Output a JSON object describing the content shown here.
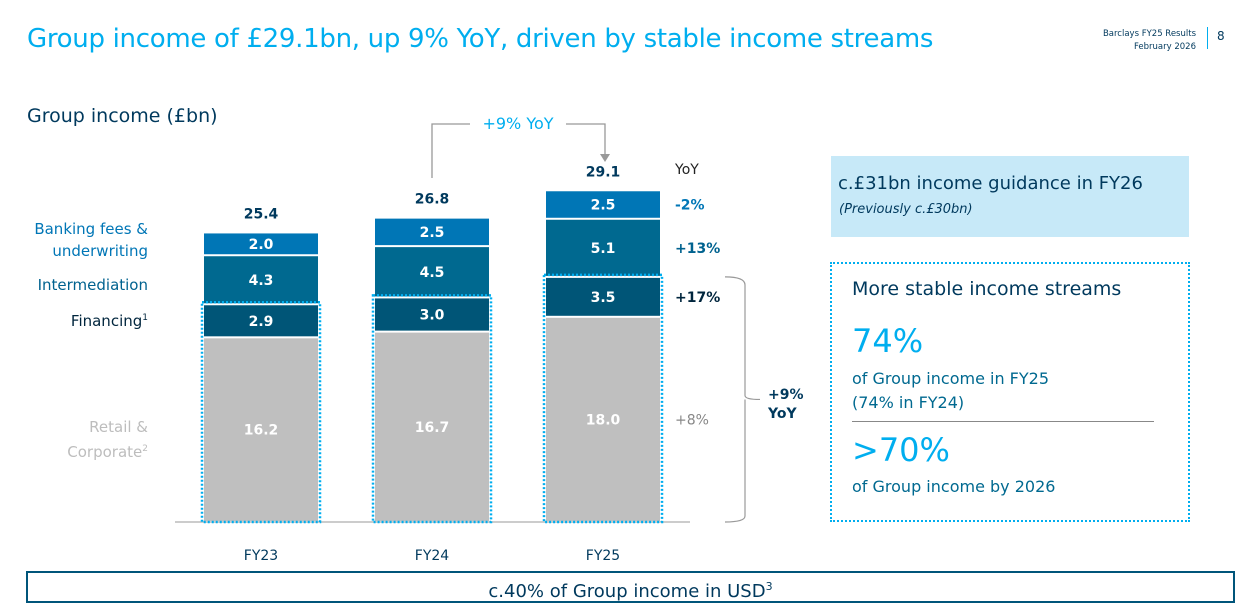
{
  "header": {
    "title": "Group income of £29.1bn, up 9% YoY, driven by stable income streams",
    "doc": "Barclays FY25 Results",
    "date": "February 2026",
    "page": "8"
  },
  "chart_data": {
    "type": "bar",
    "stacked": true,
    "title": "Group income (£bn)",
    "categories": [
      "FY23",
      "FY24",
      "FY25"
    ],
    "series": [
      {
        "name": "Retail & Corporate",
        "sup": "2",
        "values": [
          16.2,
          16.7,
          18.0
        ],
        "yoy": "+8%",
        "color": "#bfbfbf",
        "label_color": "#bdbdbd"
      },
      {
        "name": "Financing",
        "sup": "1",
        "values": [
          2.9,
          3.0,
          3.5
        ],
        "yoy": "+17%",
        "color": "#005577",
        "label_color": "#00253d"
      },
      {
        "name": "Intermediation",
        "values": [
          4.3,
          4.5,
          5.1
        ],
        "yoy": "+13%",
        "color": "#006990",
        "label_color": "#00628f"
      },
      {
        "name": "Banking fees & underwriting",
        "values": [
          2.0,
          2.5,
          2.5
        ],
        "yoy": "-2%",
        "color": "#0076b6",
        "label_color": "#0076b6"
      }
    ],
    "totals": [
      25.4,
      26.8,
      29.1
    ],
    "yoy_header": "YoY",
    "growth_arrow": "+9% YoY",
    "bracket_label": [
      "+9%",
      "YoY"
    ]
  },
  "guidance": {
    "title": "c.£31bn income guidance in FY26",
    "sub": "(Previously c.£30bn)"
  },
  "stable": {
    "heading": "More stable income streams",
    "v1": "74%",
    "d1a": "of Group income in FY25",
    "d1b": "(74% in FY24)",
    "v2": ">70%",
    "d2": "of Group income by 2026"
  },
  "footer": {
    "text": "c.40% of Group income in USD",
    "sup": "3"
  }
}
